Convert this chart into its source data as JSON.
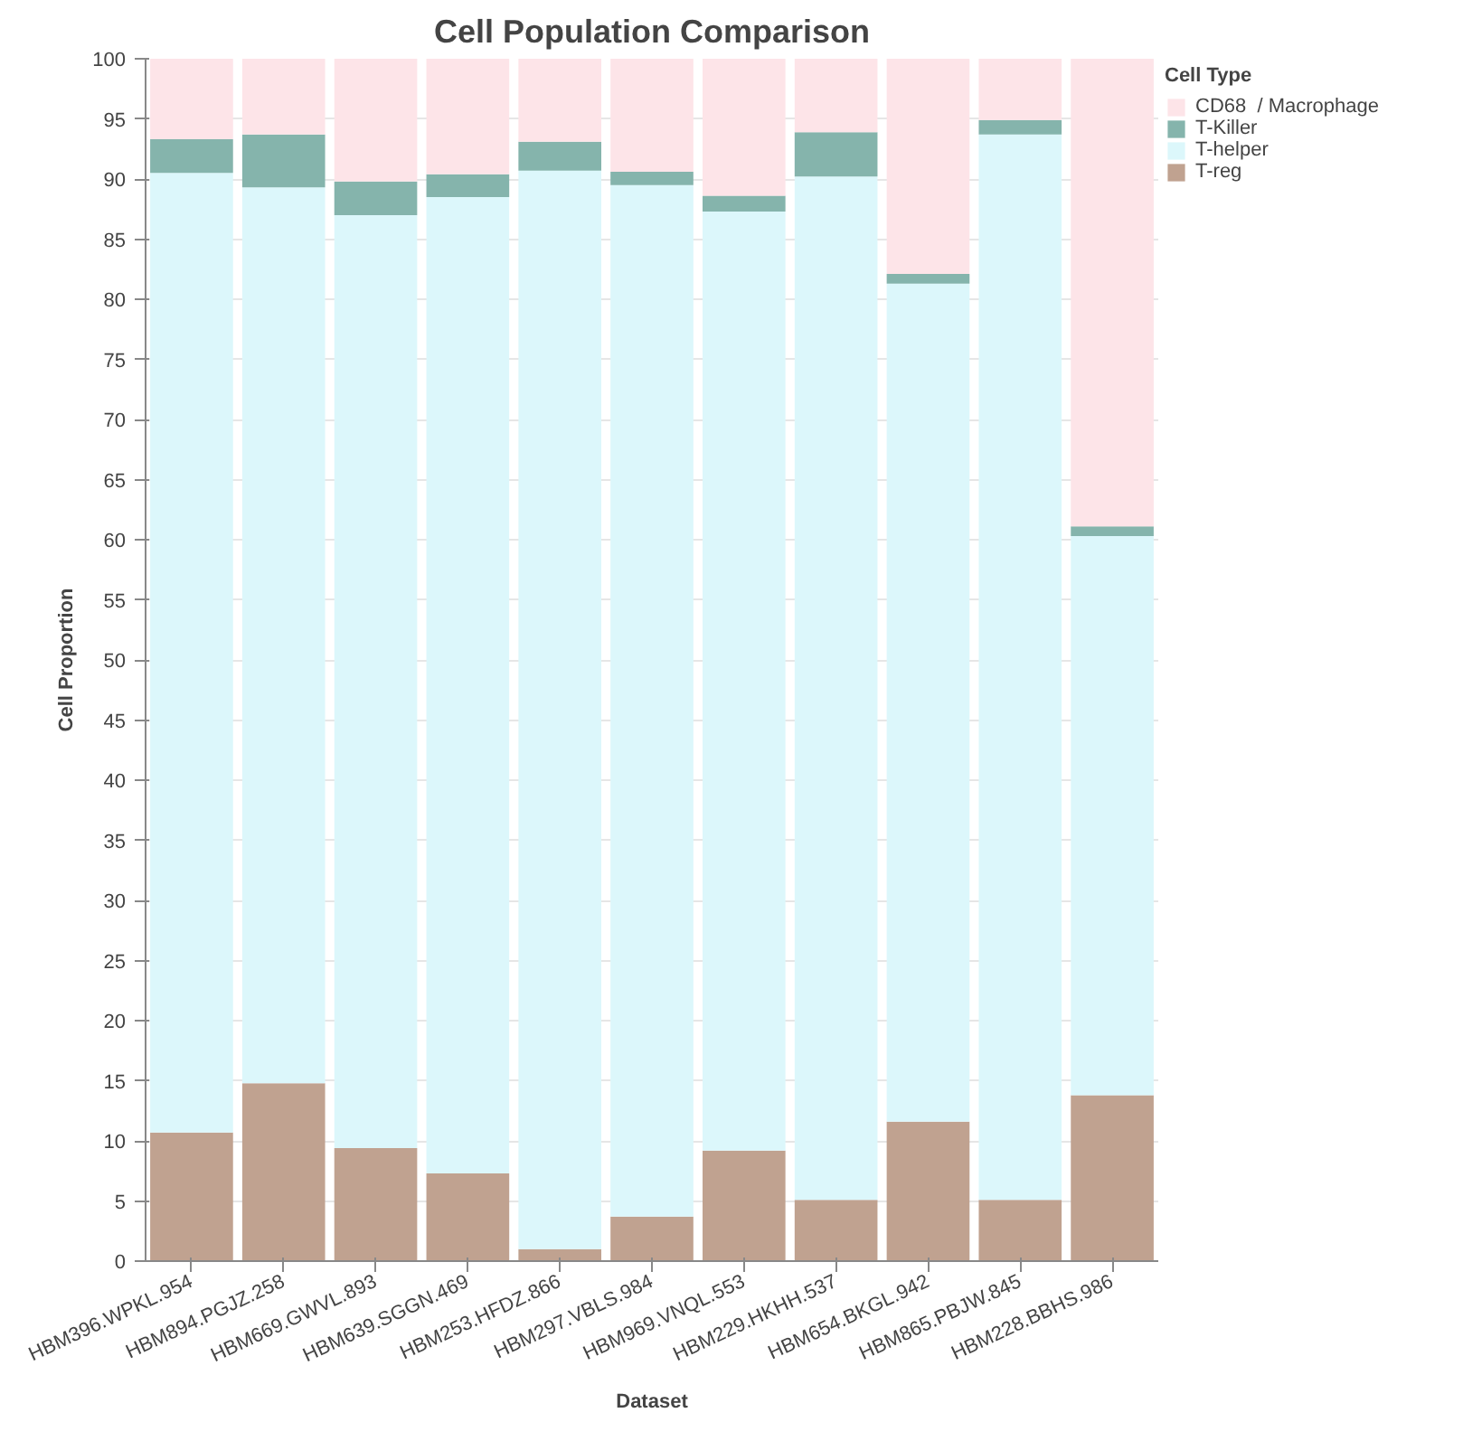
{
  "chart_data": {
    "type": "bar",
    "title": "Cell Population Comparison",
    "xlabel": "Dataset",
    "ylabel": "Cell Proportion",
    "legend_title": "Cell Type",
    "categories": [
      "HBM396.WPKL.954",
      "HBM894.PGJZ.258",
      "HBM669.GWVL.893",
      "HBM639.SGGN.469",
      "HBM253.HFDZ.866",
      "HBM297.VBLS.984",
      "HBM969.VNQL.553",
      "HBM229.HKHH.537",
      "HBM654.BKGL.942",
      "HBM865.PBJW.845",
      "HBM228.BBHS.986"
    ],
    "stacked": true,
    "ylim": [
      0,
      100
    ],
    "yticks": [
      0,
      5,
      10,
      15,
      20,
      25,
      30,
      35,
      40,
      45,
      50,
      55,
      60,
      65,
      70,
      75,
      80,
      85,
      90,
      95,
      100
    ],
    "grid": "y",
    "legend": "top right",
    "series": [
      {
        "name": "T-reg",
        "color": "#c0a290",
        "values": [
          10.7,
          14.8,
          9.4,
          7.3,
          1.0,
          3.7,
          9.2,
          5.1,
          11.6,
          5.1,
          13.8
        ]
      },
      {
        "name": "T-helper",
        "color": "#dcf7fb",
        "values": [
          79.8,
          74.5,
          77.6,
          81.2,
          89.7,
          85.8,
          78.1,
          85.1,
          69.7,
          88.6,
          46.5
        ]
      },
      {
        "name": "T-Killer",
        "color": "#85b4ac",
        "values": [
          2.8,
          4.4,
          2.8,
          1.9,
          2.4,
          1.1,
          1.3,
          3.7,
          0.8,
          1.2,
          0.8
        ]
      },
      {
        "name": "CD68  / Macrophage",
        "color": "#fde4e8",
        "values": [
          6.7,
          6.3,
          10.2,
          9.6,
          6.9,
          9.4,
          11.4,
          6.1,
          17.9,
          5.1,
          38.9
        ]
      }
    ]
  }
}
